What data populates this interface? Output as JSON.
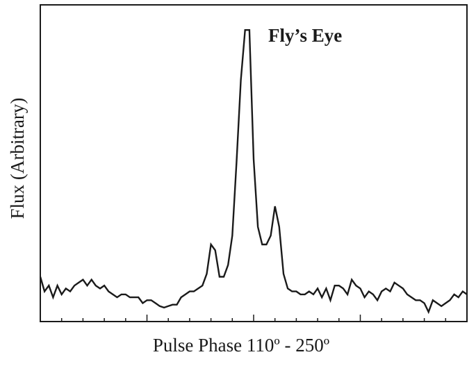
{
  "chart_data": {
    "type": "line",
    "title": "Fly’s Eye",
    "xlabel": "Pulse Phase 110º - 250º",
    "ylabel": "Flux (Arbitrary)",
    "x_tick_labels": [],
    "y_tick_labels": [],
    "grid": false,
    "legend": "none",
    "xlim": [
      0,
      100
    ],
    "ylim": [
      0,
      100
    ],
    "series": [
      {
        "values": [
          11,
          6,
          8,
          4,
          8,
          5,
          7,
          6,
          8,
          9,
          10,
          8,
          10,
          8,
          7,
          8,
          6,
          5,
          4,
          5,
          5,
          4,
          4,
          4,
          2,
          3,
          3,
          2,
          1,
          0.5,
          1,
          1.5,
          1.5,
          4,
          5,
          6,
          6,
          7,
          8,
          12,
          22,
          20,
          11,
          11,
          15,
          25,
          50,
          78,
          95,
          95,
          51,
          28,
          22,
          22,
          25,
          35,
          28,
          12,
          7,
          6,
          6,
          5,
          5,
          6,
          5,
          7,
          4,
          7,
          3,
          8,
          8,
          7,
          5,
          10,
          8,
          7,
          4,
          6,
          5,
          3,
          6,
          7,
          6,
          9,
          8,
          7,
          5,
          4,
          3,
          3,
          2,
          -1,
          3,
          2,
          1,
          2,
          3,
          5,
          4,
          6,
          5
        ],
        "color": "#1a1a1a"
      }
    ]
  }
}
